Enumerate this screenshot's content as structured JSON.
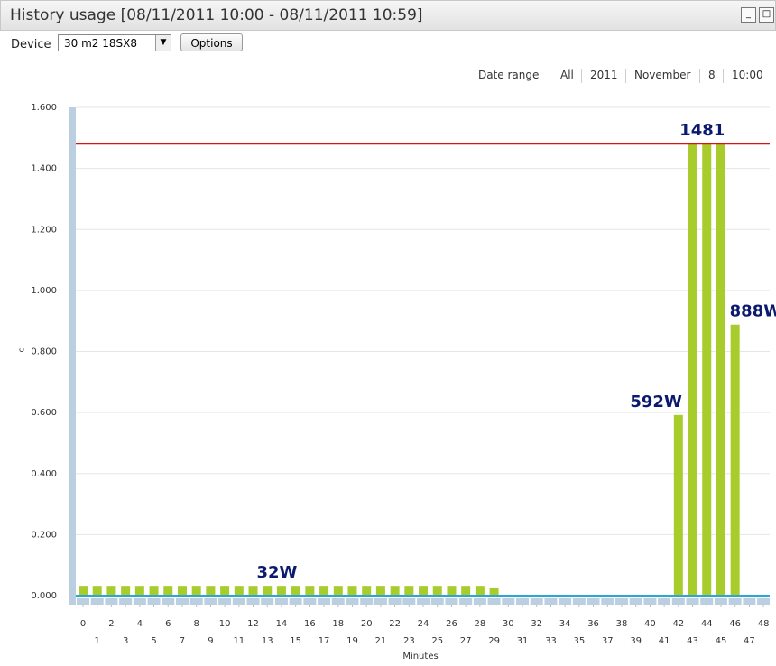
{
  "window": {
    "title": "History usage [08/11/2011 10:00 - 08/11/2011 10:59]"
  },
  "toolbar": {
    "device_label": "Device",
    "device_value": "30 m2 18SX8",
    "options_button": "Options"
  },
  "date_range": {
    "label": "Date range",
    "items": [
      "All",
      "2011",
      "November",
      "8",
      "10:00"
    ]
  },
  "chart_data": {
    "type": "bar",
    "y_label": "c",
    "x_label": "Minutes",
    "categories": [
      0,
      1,
      2,
      3,
      4,
      5,
      6,
      7,
      8,
      9,
      10,
      11,
      12,
      13,
      14,
      15,
      16,
      17,
      18,
      19,
      20,
      21,
      22,
      23,
      24,
      25,
      26,
      27,
      28,
      29,
      30,
      31,
      32,
      33,
      34,
      35,
      36,
      37,
      38,
      39,
      40,
      41,
      42,
      43,
      44,
      45,
      46,
      47,
      48
    ],
    "values": [
      32,
      32,
      32,
      32,
      32,
      32,
      32,
      32,
      32,
      32,
      32,
      32,
      32,
      32,
      32,
      32,
      32,
      32,
      32,
      32,
      32,
      32,
      32,
      32,
      32,
      32,
      32,
      32,
      32,
      24,
      null,
      null,
      null,
      null,
      null,
      null,
      null,
      null,
      null,
      null,
      null,
      null,
      592,
      1481,
      1481,
      1481,
      888,
      null,
      null
    ],
    "value_labels": [
      null,
      null,
      null,
      null,
      null,
      null,
      null,
      null,
      null,
      null,
      null,
      null,
      null,
      null,
      "32W",
      null,
      null,
      null,
      null,
      null,
      null,
      null,
      null,
      null,
      null,
      null,
      null,
      null,
      null,
      null,
      null,
      null,
      null,
      null,
      null,
      null,
      null,
      null,
      null,
      null,
      null,
      null,
      "592W",
      null,
      "1481",
      null,
      "888W",
      null,
      null
    ],
    "color": "#a8cc2c",
    "ylim": [
      0,
      1600
    ],
    "yticks": [
      {
        "value": 0,
        "label": "0.000"
      },
      {
        "value": 200,
        "label": "0.200"
      },
      {
        "value": 400,
        "label": "0.400"
      },
      {
        "value": 600,
        "label": "0.600"
      },
      {
        "value": 800,
        "label": "0.800"
      },
      {
        "value": 1000,
        "label": "1.000"
      },
      {
        "value": 1200,
        "label": "1.200"
      },
      {
        "value": 1400,
        "label": "1.400"
      },
      {
        "value": 1600,
        "label": "1.600"
      }
    ],
    "grid": true,
    "reference_lines": [
      {
        "value": 1481,
        "color": "#dd1111"
      }
    ],
    "baseline_color": "#2aa6d8"
  }
}
